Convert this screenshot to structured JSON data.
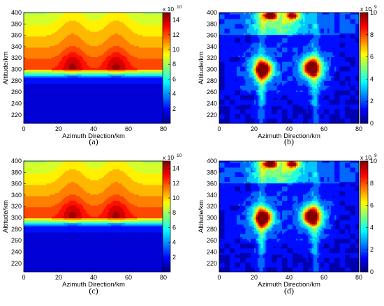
{
  "chart_data": [
    {
      "type": "heatmap",
      "panel_label": "(a)",
      "xlabel": "Azimuth Direction/km",
      "ylabel": "Altitude/km",
      "xlim": [
        0,
        80
      ],
      "ylim": [
        205,
        400
      ],
      "xticks": [
        "0",
        "20",
        "40",
        "60",
        "80"
      ],
      "yticks": [
        "220",
        "240",
        "260",
        "280",
        "300",
        "320",
        "340",
        "360",
        "380",
        "400"
      ],
      "colorbar": {
        "multiplier": "x 10",
        "exponent": "10",
        "range": [
          0,
          15
        ],
        "ticks": [
          "2",
          "4",
          "6",
          "8",
          "10",
          "12",
          "14"
        ]
      },
      "field": {
        "kind": "electron_density",
        "background_max": 12.5,
        "layer_peak_altitude": 310,
        "peaks": [
          {
            "x": 28,
            "y": 310,
            "value": 14.6
          },
          {
            "x": 53,
            "y": 310,
            "value": 14.6
          }
        ]
      },
      "grid": false
    },
    {
      "type": "heatmap",
      "panel_label": "(b)",
      "xlabel": "Azimuth Direction/km",
      "ylabel": "Altitude/km",
      "xlim": [
        0,
        80
      ],
      "ylim": [
        205,
        400
      ],
      "xticks": [
        "0",
        "20",
        "40",
        "60",
        "80"
      ],
      "yticks": [
        "220",
        "240",
        "260",
        "280",
        "300",
        "320",
        "340",
        "360",
        "380",
        "400"
      ],
      "colorbar": {
        "multiplier": "x 10",
        "exponent": "9",
        "range": [
          0,
          10
        ],
        "ticks": [
          "0",
          "2",
          "4",
          "6",
          "8",
          "10"
        ]
      },
      "field": {
        "kind": "perturbation",
        "peaks": [
          {
            "x": 25,
            "y": 300,
            "value": 9.3
          },
          {
            "x": 53,
            "y": 303,
            "value": 8.6
          },
          {
            "x": 29,
            "y": 395,
            "value": 7.0
          },
          {
            "x": 42,
            "y": 395,
            "value": 6.0
          }
        ]
      },
      "grid": false
    },
    {
      "type": "heatmap",
      "panel_label": "(c)",
      "xlabel": "Azimuth Direction/km",
      "ylabel": "Altitude/km",
      "xlim": [
        0,
        80
      ],
      "ylim": [
        205,
        400
      ],
      "xticks": [
        "0",
        "20",
        "40",
        "60",
        "80"
      ],
      "yticks": [
        "220",
        "240",
        "260",
        "280",
        "300",
        "320",
        "340",
        "360",
        "380",
        "400"
      ],
      "colorbar": {
        "multiplier": "x 10",
        "exponent": "10",
        "range": [
          0,
          15
        ],
        "ticks": [
          "2",
          "4",
          "6",
          "8",
          "10",
          "12",
          "14"
        ]
      },
      "field": {
        "kind": "electron_density",
        "background_max": 12.5,
        "layer_peak_altitude": 310,
        "peaks": [
          {
            "x": 28,
            "y": 310,
            "value": 14.6
          },
          {
            "x": 53,
            "y": 310,
            "value": 14.6
          }
        ]
      },
      "grid": false
    },
    {
      "type": "heatmap",
      "panel_label": "(d)",
      "xlabel": "Azimuth Direction/km",
      "ylabel": "Altitude/km",
      "xlim": [
        0,
        80
      ],
      "ylim": [
        205,
        400
      ],
      "xticks": [
        "0",
        "20",
        "40",
        "60",
        "80"
      ],
      "yticks": [
        "220",
        "240",
        "260",
        "280",
        "300",
        "320",
        "340",
        "360",
        "380",
        "400"
      ],
      "colorbar": {
        "multiplier": "x 10",
        "exponent": "9",
        "range": [
          0,
          10
        ],
        "ticks": [
          "0",
          "2",
          "4",
          "6",
          "8",
          "10"
        ]
      },
      "field": {
        "kind": "perturbation",
        "peaks": [
          {
            "x": 25,
            "y": 300,
            "value": 9.3
          },
          {
            "x": 53,
            "y": 303,
            "value": 8.6
          },
          {
            "x": 29,
            "y": 395,
            "value": 7.0
          },
          {
            "x": 42,
            "y": 395,
            "value": 6.0
          }
        ]
      },
      "grid": false
    }
  ]
}
